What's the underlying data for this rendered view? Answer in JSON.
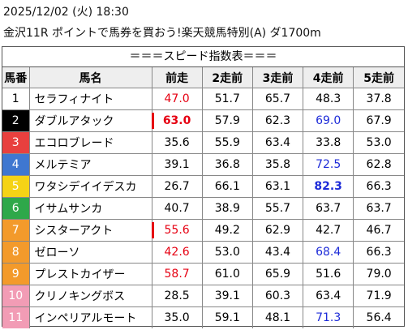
{
  "header": {
    "datetime": "2025/12/02 (火) 18:30",
    "race": "金沢11R ポイントで馬券を買おう!楽天競馬特別(A) ダ1700m"
  },
  "table": {
    "title": "＝＝＝スピード指数表＝＝＝",
    "columns": [
      "馬番",
      "馬名",
      "前走",
      "2走前",
      "3走前",
      "4走前",
      "5走前"
    ],
    "rows": [
      {
        "number": "1",
        "bracket_color": "#ffffff",
        "number_color": "#000000",
        "name": "セラフィナイト",
        "values": [
          {
            "text": "47.0",
            "color": "#e60012"
          },
          "51.7",
          "65.7",
          "48.3",
          "37.8"
        ]
      },
      {
        "number": "2",
        "bracket_color": "#000000",
        "number_color": "#ffffff",
        "name": "ダブルアタック",
        "values": [
          {
            "text": "63.0",
            "color": "#e60012",
            "bold": true,
            "bar": true
          },
          "57.9",
          "62.3",
          {
            "text": "69.0",
            "color": "#1d2bd8"
          },
          "67.9"
        ]
      },
      {
        "number": "3",
        "bracket_color": "#e8403e",
        "number_color": "#ffffff",
        "name": "エコロブレード",
        "values": [
          "35.6",
          "55.9",
          "63.4",
          "33.8",
          "53.0"
        ]
      },
      {
        "number": "4",
        "bracket_color": "#3f77d0",
        "number_color": "#ffffff",
        "name": "メルテミア",
        "values": [
          "39.1",
          "36.8",
          "35.8",
          {
            "text": "72.5",
            "color": "#1d2bd8"
          },
          "62.8"
        ]
      },
      {
        "number": "5",
        "bracket_color": "#f5d316",
        "number_color": "#ffffff",
        "name": "ワタシデイイデスカ",
        "values": [
          "26.7",
          "66.1",
          "63.1",
          {
            "text": "82.3",
            "color": "#1d2bd8",
            "bold": true
          },
          "66.3"
        ]
      },
      {
        "number": "6",
        "bracket_color": "#2ea84a",
        "number_color": "#ffffff",
        "name": "イサムサンカ",
        "values": [
          "40.7",
          "38.9",
          "55.7",
          "63.7",
          "63.7"
        ]
      },
      {
        "number": "7",
        "bracket_color": "#f39a2b",
        "number_color": "#ffffff",
        "name": "シスターアクト",
        "values": [
          {
            "text": "55.6",
            "color": "#e60012",
            "bar": true
          },
          "49.2",
          "62.9",
          "42.7",
          "46.7"
        ]
      },
      {
        "number": "8",
        "bracket_color": "#f39a2b",
        "number_color": "#ffffff",
        "name": "ゼローソ",
        "values": [
          {
            "text": "42.6",
            "color": "#e60012"
          },
          "53.0",
          "43.4",
          {
            "text": "68.4",
            "color": "#1d2bd8"
          },
          "66.3"
        ]
      },
      {
        "number": "9",
        "bracket_color": "#f39a2b",
        "number_color": "#ffffff",
        "name": "プレストカイザー",
        "values": [
          {
            "text": "58.7",
            "color": "#e60012"
          },
          "61.0",
          "65.9",
          "51.6",
          "79.0"
        ]
      },
      {
        "number": "10",
        "bracket_color": "#f29cb5",
        "number_color": "#ffffff",
        "name": "クリノキングボス",
        "values": [
          "28.5",
          "39.1",
          "60.3",
          "63.4",
          "71.9"
        ]
      },
      {
        "number": "11",
        "bracket_color": "#f29cb5",
        "number_color": "#ffffff",
        "name": "インペリアルモート",
        "values": [
          "35.0",
          "59.1",
          "48.1",
          {
            "text": "71.3",
            "color": "#1d2bd8"
          },
          "56.4"
        ]
      }
    ]
  }
}
